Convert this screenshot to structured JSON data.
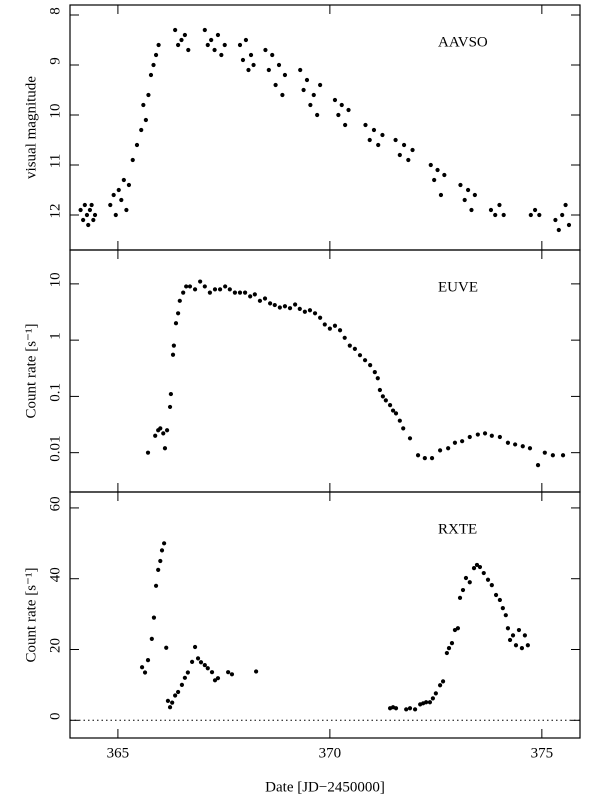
{
  "chart_data": [
    {
      "type": "scatter",
      "annotation": "AAVSO",
      "ylabel": "visual magnitude",
      "color": "#000000",
      "xlim": [
        363.87,
        375.9
      ],
      "xticks": [
        365,
        370,
        375
      ],
      "ylim": [
        12.7,
        7.8
      ],
      "yticks": [
        8,
        9,
        10,
        11,
        12
      ],
      "x": [
        364.12,
        364.18,
        364.22,
        364.27,
        364.3,
        364.34,
        364.38,
        364.42,
        364.46,
        364.82,
        364.9,
        364.95,
        365.02,
        365.08,
        365.14,
        365.2,
        365.26,
        365.35,
        365.45,
        365.55,
        365.6,
        365.66,
        365.72,
        365.78,
        365.84,
        365.9,
        365.96,
        366.35,
        366.42,
        366.5,
        366.58,
        366.66,
        367.05,
        367.12,
        367.2,
        367.28,
        367.36,
        367.44,
        367.52,
        367.88,
        367.95,
        368.02,
        368.08,
        368.14,
        368.2,
        368.48,
        368.56,
        368.64,
        368.72,
        368.8,
        368.88,
        368.94,
        369.3,
        369.38,
        369.46,
        369.54,
        369.62,
        369.7,
        369.77,
        370.12,
        370.2,
        370.28,
        370.36,
        370.44,
        370.84,
        370.94,
        371.04,
        371.14,
        371.24,
        371.55,
        371.65,
        371.75,
        371.85,
        371.95,
        372.38,
        372.46,
        372.54,
        372.62,
        372.7,
        373.08,
        373.18,
        373.26,
        373.34,
        373.42,
        373.8,
        373.9,
        374.0,
        374.1,
        374.74,
        374.84,
        374.94,
        375.32,
        375.4,
        375.48,
        375.56,
        375.64
      ],
      "y": [
        11.9,
        12.1,
        11.8,
        12.0,
        12.2,
        11.9,
        11.8,
        12.1,
        12.0,
        11.8,
        11.6,
        12.0,
        11.5,
        11.7,
        11.3,
        11.9,
        11.4,
        10.9,
        10.6,
        10.3,
        9.8,
        10.1,
        9.6,
        9.2,
        9.0,
        8.8,
        8.6,
        8.3,
        8.6,
        8.5,
        8.4,
        8.7,
        8.3,
        8.6,
        8.5,
        8.7,
        8.4,
        8.8,
        8.6,
        8.6,
        8.9,
        8.5,
        9.1,
        8.8,
        9.0,
        8.7,
        9.1,
        8.8,
        9.4,
        9.0,
        9.6,
        9.2,
        9.1,
        9.5,
        9.3,
        9.8,
        9.6,
        10.0,
        9.4,
        9.7,
        10.0,
        9.8,
        10.2,
        9.9,
        10.2,
        10.5,
        10.3,
        10.6,
        10.4,
        10.5,
        10.8,
        10.6,
        10.9,
        10.7,
        11.0,
        11.3,
        11.1,
        11.6,
        11.2,
        11.4,
        11.7,
        11.5,
        11.9,
        11.6,
        11.9,
        12.0,
        11.8,
        12.0,
        12.0,
        11.9,
        12.0,
        12.1,
        12.3,
        12.0,
        11.8,
        12.2
      ]
    },
    {
      "type": "scatter",
      "annotation": "EUVE",
      "ylabel": "Count rate [s⁻¹]",
      "color": "#000000",
      "yscale": "log",
      "xlim": [
        363.87,
        375.9
      ],
      "xticks": [
        365,
        370,
        375
      ],
      "ylim": [
        0.002,
        40
      ],
      "yticks": [
        10,
        1,
        0.1,
        0.01
      ],
      "x": [
        365.71,
        365.88,
        365.95,
        366.0,
        366.07,
        366.11,
        366.16,
        366.23,
        366.25,
        366.3,
        366.32,
        366.37,
        366.42,
        366.46,
        366.54,
        366.61,
        366.7,
        366.82,
        366.94,
        367.05,
        367.17,
        367.29,
        367.41,
        367.53,
        367.64,
        367.76,
        367.88,
        368.0,
        368.12,
        368.23,
        368.35,
        368.47,
        368.59,
        368.7,
        368.82,
        368.94,
        369.06,
        369.18,
        369.29,
        369.41,
        369.53,
        369.65,
        369.77,
        369.88,
        370.0,
        370.12,
        370.24,
        370.35,
        370.47,
        370.59,
        370.71,
        370.83,
        370.95,
        371.06,
        371.13,
        371.18,
        371.25,
        371.32,
        371.42,
        371.49,
        371.56,
        371.65,
        371.73,
        371.89,
        372.08,
        372.24,
        372.41,
        372.6,
        372.79,
        372.95,
        373.12,
        373.3,
        373.49,
        373.66,
        373.82,
        374.01,
        374.2,
        374.37,
        374.55,
        374.72,
        374.91,
        375.07,
        375.26,
        375.5
      ],
      "y": [
        0.01,
        0.02,
        0.025,
        0.027,
        0.022,
        0.012,
        0.025,
        0.065,
        0.11,
        0.55,
        0.8,
        2.0,
        3.0,
        5.0,
        7,
        9,
        9,
        8,
        11,
        9,
        7,
        8,
        8,
        9,
        8,
        7,
        7,
        7,
        6,
        6.5,
        5,
        5.5,
        4.5,
        4.2,
        3.8,
        4,
        3.7,
        4.3,
        3.6,
        3.2,
        3.4,
        3.0,
        2.5,
        1.9,
        1.6,
        1.8,
        1.5,
        1.1,
        0.8,
        0.7,
        0.54,
        0.44,
        0.36,
        0.27,
        0.21,
        0.13,
        0.1,
        0.085,
        0.07,
        0.056,
        0.05,
        0.037,
        0.027,
        0.018,
        0.009,
        0.008,
        0.008,
        0.011,
        0.012,
        0.015,
        0.016,
        0.019,
        0.021,
        0.022,
        0.02,
        0.019,
        0.015,
        0.014,
        0.013,
        0.012,
        0.006,
        0.01,
        0.009,
        0.009
      ]
    },
    {
      "type": "scatter",
      "annotation": "RXTE",
      "ylabel": "Count rate [s⁻¹]",
      "xlabel": "Date [JD−2450000]",
      "color": "#000000",
      "zero_line": true,
      "xlim": [
        363.87,
        375.9
      ],
      "xticks": [
        365,
        370,
        375
      ],
      "ylim": [
        -5,
        64.5
      ],
      "yticks": [
        0,
        20,
        40,
        60
      ],
      "x": [
        365.57,
        365.64,
        365.71,
        365.8,
        365.85,
        365.9,
        365.95,
        366.0,
        366.04,
        366.09,
        366.14,
        366.18,
        366.23,
        366.28,
        366.35,
        366.42,
        366.51,
        366.58,
        366.65,
        366.75,
        366.82,
        366.89,
        366.96,
        367.05,
        367.12,
        367.22,
        367.29,
        367.36,
        367.6,
        367.69,
        368.26,
        371.42,
        371.49,
        371.56,
        371.8,
        371.89,
        372.01,
        372.13,
        372.2,
        372.27,
        372.36,
        372.43,
        372.5,
        372.6,
        372.67,
        372.76,
        372.81,
        372.88,
        372.95,
        373.02,
        373.07,
        373.14,
        373.21,
        373.3,
        373.4,
        373.47,
        373.54,
        373.63,
        373.73,
        373.82,
        373.92,
        374.01,
        374.08,
        374.15,
        374.2,
        374.25,
        374.32,
        374.39,
        374.46,
        374.53,
        374.6,
        374.67
      ],
      "y": [
        15,
        13.5,
        17,
        23,
        29,
        38,
        42.5,
        45,
        48,
        50,
        20.5,
        5.5,
        3.7,
        5,
        7,
        8,
        10,
        12,
        13.5,
        16.5,
        20.7,
        17.5,
        16.4,
        15.6,
        14.7,
        13.6,
        11.3,
        11.9,
        13.6,
        13,
        13.8,
        3.4,
        3.7,
        3.4,
        3.1,
        3.4,
        3.1,
        4.5,
        4.8,
        5.1,
        5.1,
        6.2,
        7.6,
        9.9,
        11,
        19,
        20.4,
        21.8,
        25.5,
        26,
        34.6,
        36.8,
        40.2,
        39,
        43,
        43.9,
        43.3,
        41.6,
        39.7,
        38.2,
        35.4,
        34,
        31.7,
        29.7,
        26,
        22.7,
        24,
        21.2,
        25.5,
        20.4,
        24,
        21.2
      ]
    }
  ]
}
